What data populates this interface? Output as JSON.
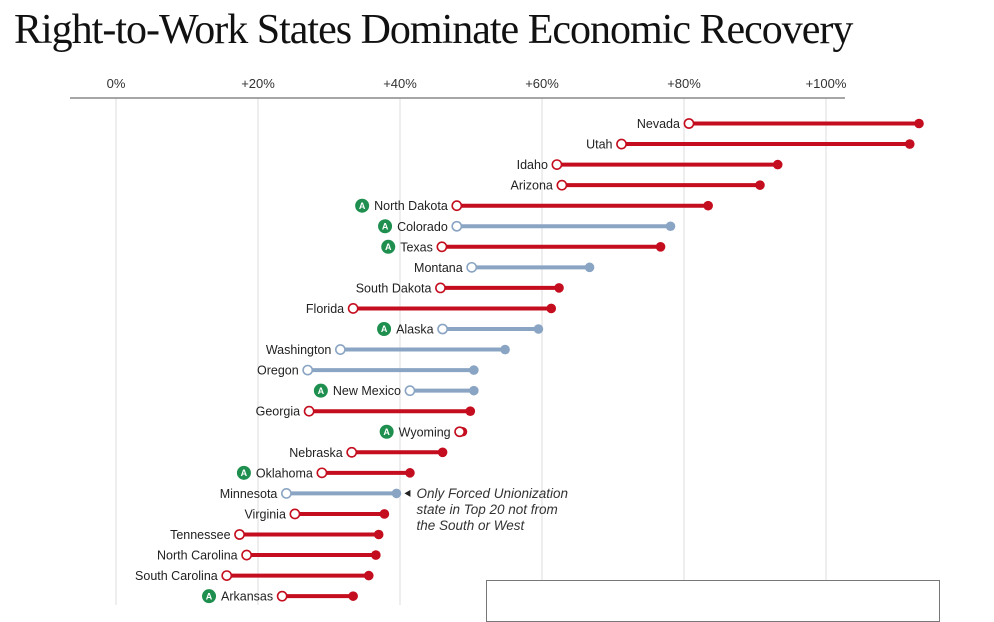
{
  "title": "Right-to-Work States Dominate Economic Recovery",
  "colors": {
    "right_to_work": "#c40d1e",
    "forced_unionization": "#8aa5c3",
    "icon": "#1e8f4e",
    "grid": "#dddddd",
    "axis": "#888888"
  },
  "chart_data": {
    "type": "dumbbell",
    "xlim": [
      0,
      100
    ],
    "ticks": [
      {
        "value": 0,
        "label": "0%"
      },
      {
        "value": 20,
        "label": "+20%"
      },
      {
        "value": 40,
        "label": "+40%"
      },
      {
        "value": 60,
        "label": "+60%"
      },
      {
        "value": 80,
        "label": "+80%"
      },
      {
        "value": 100,
        "label": "+100%"
      }
    ],
    "icon_glyph": "A",
    "rows": [
      {
        "state": "Nevada",
        "start": 80.7,
        "end": 113.1,
        "group": "right_to_work",
        "icon": false
      },
      {
        "state": "Utah",
        "start": 71.2,
        "end": 111.8,
        "group": "right_to_work",
        "icon": false
      },
      {
        "state": "Idaho",
        "start": 62.1,
        "end": 93.2,
        "group": "right_to_work",
        "icon": false
      },
      {
        "state": "Arizona",
        "start": 62.8,
        "end": 90.7,
        "group": "right_to_work",
        "icon": false
      },
      {
        "state": "North Dakota",
        "start": 48.0,
        "end": 83.4,
        "group": "right_to_work",
        "icon": true
      },
      {
        "state": "Colorado",
        "start": 48.0,
        "end": 78.1,
        "group": "forced_unionization",
        "icon": true
      },
      {
        "state": "Texas",
        "start": 45.9,
        "end": 76.7,
        "group": "right_to_work",
        "icon": true
      },
      {
        "state": "Montana",
        "start": 50.1,
        "end": 66.7,
        "group": "forced_unionization",
        "icon": false
      },
      {
        "state": "South Dakota",
        "start": 45.7,
        "end": 62.4,
        "group": "right_to_work",
        "icon": false
      },
      {
        "state": "Florida",
        "start": 33.4,
        "end": 61.3,
        "group": "right_to_work",
        "icon": false
      },
      {
        "state": "Alaska",
        "start": 46.0,
        "end": 59.5,
        "group": "forced_unionization",
        "icon": true
      },
      {
        "state": "Washington",
        "start": 31.6,
        "end": 54.8,
        "group": "forced_unionization",
        "icon": false
      },
      {
        "state": "Oregon",
        "start": 27.0,
        "end": 50.4,
        "group": "forced_unionization",
        "icon": false
      },
      {
        "state": "New Mexico",
        "start": 41.4,
        "end": 50.4,
        "group": "forced_unionization",
        "icon": true
      },
      {
        "state": "Georgia",
        "start": 27.2,
        "end": 49.9,
        "group": "right_to_work",
        "icon": false
      },
      {
        "state": "Wyoming",
        "start": 48.4,
        "end": 48.8,
        "group": "right_to_work",
        "icon": true
      },
      {
        "state": "Nebraska",
        "start": 33.2,
        "end": 46.0,
        "group": "right_to_work",
        "icon": false
      },
      {
        "state": "Oklahoma",
        "start": 29.0,
        "end": 41.4,
        "group": "right_to_work",
        "icon": true
      },
      {
        "state": "Minnesota",
        "start": 24.0,
        "end": 39.5,
        "group": "forced_unionization",
        "icon": false
      },
      {
        "state": "Virginia",
        "start": 25.2,
        "end": 37.8,
        "group": "right_to_work",
        "icon": false
      },
      {
        "state": "Tennessee",
        "start": 17.4,
        "end": 37.0,
        "group": "right_to_work",
        "icon": false
      },
      {
        "state": "North Carolina",
        "start": 18.4,
        "end": 36.6,
        "group": "right_to_work",
        "icon": false
      },
      {
        "state": "South Carolina",
        "start": 15.6,
        "end": 35.6,
        "group": "right_to_work",
        "icon": false
      },
      {
        "state": "Arkansas",
        "start": 23.4,
        "end": 33.4,
        "group": "right_to_work",
        "icon": true
      }
    ],
    "annotation": {
      "state": "Minnesota",
      "lines": [
        "Only Forced Unionization",
        "state in Top 20 not from",
        "the South or West"
      ]
    }
  }
}
